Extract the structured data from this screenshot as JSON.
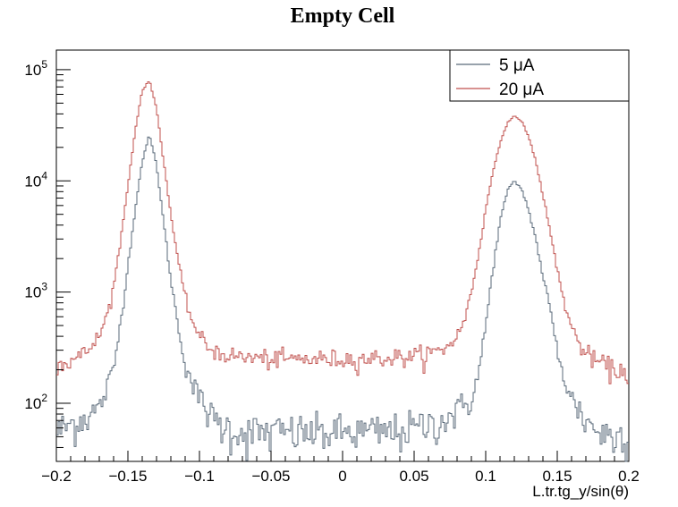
{
  "chart_data": {
    "type": "line",
    "title": "Empty Cell",
    "xlabel": "L.tr.tg_y/sin(θ)",
    "ylabel": "",
    "xlim": [
      -0.2,
      0.2
    ],
    "ylim": [
      30,
      150000
    ],
    "y_scale": "log",
    "x_ticks": [
      {
        "value": -0.2,
        "label": "−0.2"
      },
      {
        "value": -0.15,
        "label": "−0.15"
      },
      {
        "value": -0.1,
        "label": "−0.1"
      },
      {
        "value": -0.05,
        "label": "−0.05"
      },
      {
        "value": 0,
        "label": "0"
      },
      {
        "value": 0.05,
        "label": "0.05"
      },
      {
        "value": 0.1,
        "label": "0.1"
      },
      {
        "value": 0.15,
        "label": "0.15"
      },
      {
        "value": 0.2,
        "label": "0.2"
      }
    ],
    "y_ticks": [
      {
        "value": 100,
        "base": "10",
        "exp": "2"
      },
      {
        "value": 1000,
        "base": "10",
        "exp": "3"
      },
      {
        "value": 10000,
        "base": "10",
        "exp": "4"
      },
      {
        "value": 100000,
        "base": "10",
        "exp": "5"
      }
    ],
    "grid": false,
    "legend_position": "top-right",
    "series": [
      {
        "name": "5 μA",
        "color": "#5a6a7a",
        "x": [
          -0.2,
          -0.19,
          -0.18,
          -0.17,
          -0.16,
          -0.155,
          -0.15,
          -0.145,
          -0.14,
          -0.135,
          -0.13,
          -0.125,
          -0.12,
          -0.115,
          -0.11,
          -0.105,
          -0.1,
          -0.095,
          -0.09,
          -0.08,
          -0.07,
          -0.05,
          -0.03,
          0,
          0.03,
          0.05,
          0.07,
          0.08,
          0.09,
          0.095,
          0.1,
          0.105,
          0.11,
          0.115,
          0.12,
          0.125,
          0.13,
          0.135,
          0.14,
          0.145,
          0.15,
          0.155,
          0.16,
          0.17,
          0.18,
          0.19,
          0.2
        ],
        "y": [
          55,
          65,
          75,
          90,
          200,
          550,
          1700,
          5500,
          15000,
          26000,
          14000,
          4200,
          1300,
          500,
          230,
          150,
          110,
          90,
          70,
          60,
          55,
          55,
          55,
          55,
          55,
          60,
          70,
          85,
          110,
          180,
          500,
          1600,
          4300,
          8000,
          10000,
          8500,
          5500,
          3000,
          1400,
          700,
          300,
          170,
          110,
          70,
          55,
          50,
          55
        ]
      },
      {
        "name": "20 μA",
        "color": "#c0504d",
        "x": [
          -0.2,
          -0.19,
          -0.18,
          -0.17,
          -0.165,
          -0.16,
          -0.155,
          -0.15,
          -0.145,
          -0.14,
          -0.135,
          -0.13,
          -0.125,
          -0.12,
          -0.115,
          -0.11,
          -0.105,
          -0.1,
          -0.095,
          -0.09,
          -0.08,
          -0.07,
          -0.05,
          -0.03,
          0,
          0.03,
          0.05,
          0.07,
          0.08,
          0.085,
          0.09,
          0.095,
          0.1,
          0.105,
          0.11,
          0.115,
          0.12,
          0.125,
          0.13,
          0.135,
          0.14,
          0.145,
          0.15,
          0.155,
          0.16,
          0.165,
          0.17,
          0.18,
          0.19,
          0.2
        ],
        "y": [
          220,
          240,
          280,
          400,
          600,
          1100,
          3000,
          9000,
          28000,
          65000,
          80000,
          45000,
          15000,
          5000,
          1900,
          900,
          550,
          400,
          330,
          300,
          270,
          260,
          250,
          250,
          250,
          255,
          265,
          300,
          400,
          550,
          1000,
          2200,
          5500,
          12000,
          22000,
          33000,
          38000,
          35000,
          25000,
          15000,
          7500,
          3500,
          1600,
          800,
          480,
          350,
          280,
          230,
          200,
          190
        ]
      }
    ]
  }
}
